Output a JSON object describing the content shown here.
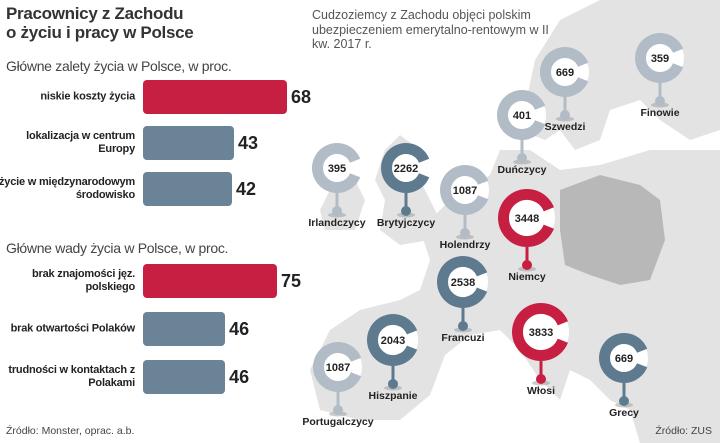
{
  "title_line1": "Pracownicy z Zachodu",
  "title_line2": "o życiu i pracy w Polsce",
  "map_title": "Cudzoziemcy z Zachodu objęci polskim ubezpieczeniem emerytalno-rentowym w II kw. 2017 r.",
  "source_left": "Źródło: Monster, oprac. a.b.",
  "source_right": "Źródło: ZUS",
  "colors": {
    "highlight": "#c71f42",
    "bar_default": "#6b8396",
    "marker_light": "#b1bcc6",
    "marker_dark": "#5e7a8f",
    "land": "#e3e3e3",
    "poland": "#b8b8b8"
  },
  "chart_data": [
    {
      "type": "bar",
      "orientation": "horizontal",
      "title": "Główne zalety życia w Polsce, w proc.",
      "categories": [
        "niskie koszty życia",
        "lokalizacja w centrum Europy",
        "życie w międzynarodowym środowisko"
      ],
      "values": [
        68,
        43,
        42
      ],
      "highlight": [
        true,
        false,
        false
      ]
    },
    {
      "type": "bar",
      "orientation": "horizontal",
      "title": "Główne wady życia w Polsce, w proc.",
      "categories": [
        "brak znajomości jęz. polskiego",
        "brak otwartości Polaków",
        "trudności w kontaktach z Polakami"
      ],
      "values": [
        75,
        46,
        46
      ],
      "highlight": [
        true,
        false,
        false
      ]
    },
    {
      "type": "map-markers",
      "title": "Cudzoziemcy z Zachodu objęci polskim ubezpieczeniem emerytalno-rentowym w II kw. 2017 r.",
      "points": [
        {
          "label": "Szwedzi",
          "value": 669,
          "tone": "light"
        },
        {
          "label": "Finowie",
          "value": 359,
          "tone": "light"
        },
        {
          "label": "Duńczycy",
          "value": 401,
          "tone": "light"
        },
        {
          "label": "Irlandczycy",
          "value": 395,
          "tone": "light"
        },
        {
          "label": "Brytyjczycy",
          "value": 2262,
          "tone": "dark"
        },
        {
          "label": "Holendrzy",
          "value": 1087,
          "tone": "light"
        },
        {
          "label": "Niemcy",
          "value": 3448,
          "tone": "red"
        },
        {
          "label": "Francuzi",
          "value": 2538,
          "tone": "dark"
        },
        {
          "label": "Hiszpanie",
          "value": 2043,
          "tone": "dark"
        },
        {
          "label": "Portugalczycy",
          "value": 1087,
          "tone": "light"
        },
        {
          "label": "Włosi",
          "value": 3833,
          "tone": "red"
        },
        {
          "label": "Grecy",
          "value": 669,
          "tone": "dark"
        }
      ]
    }
  ]
}
